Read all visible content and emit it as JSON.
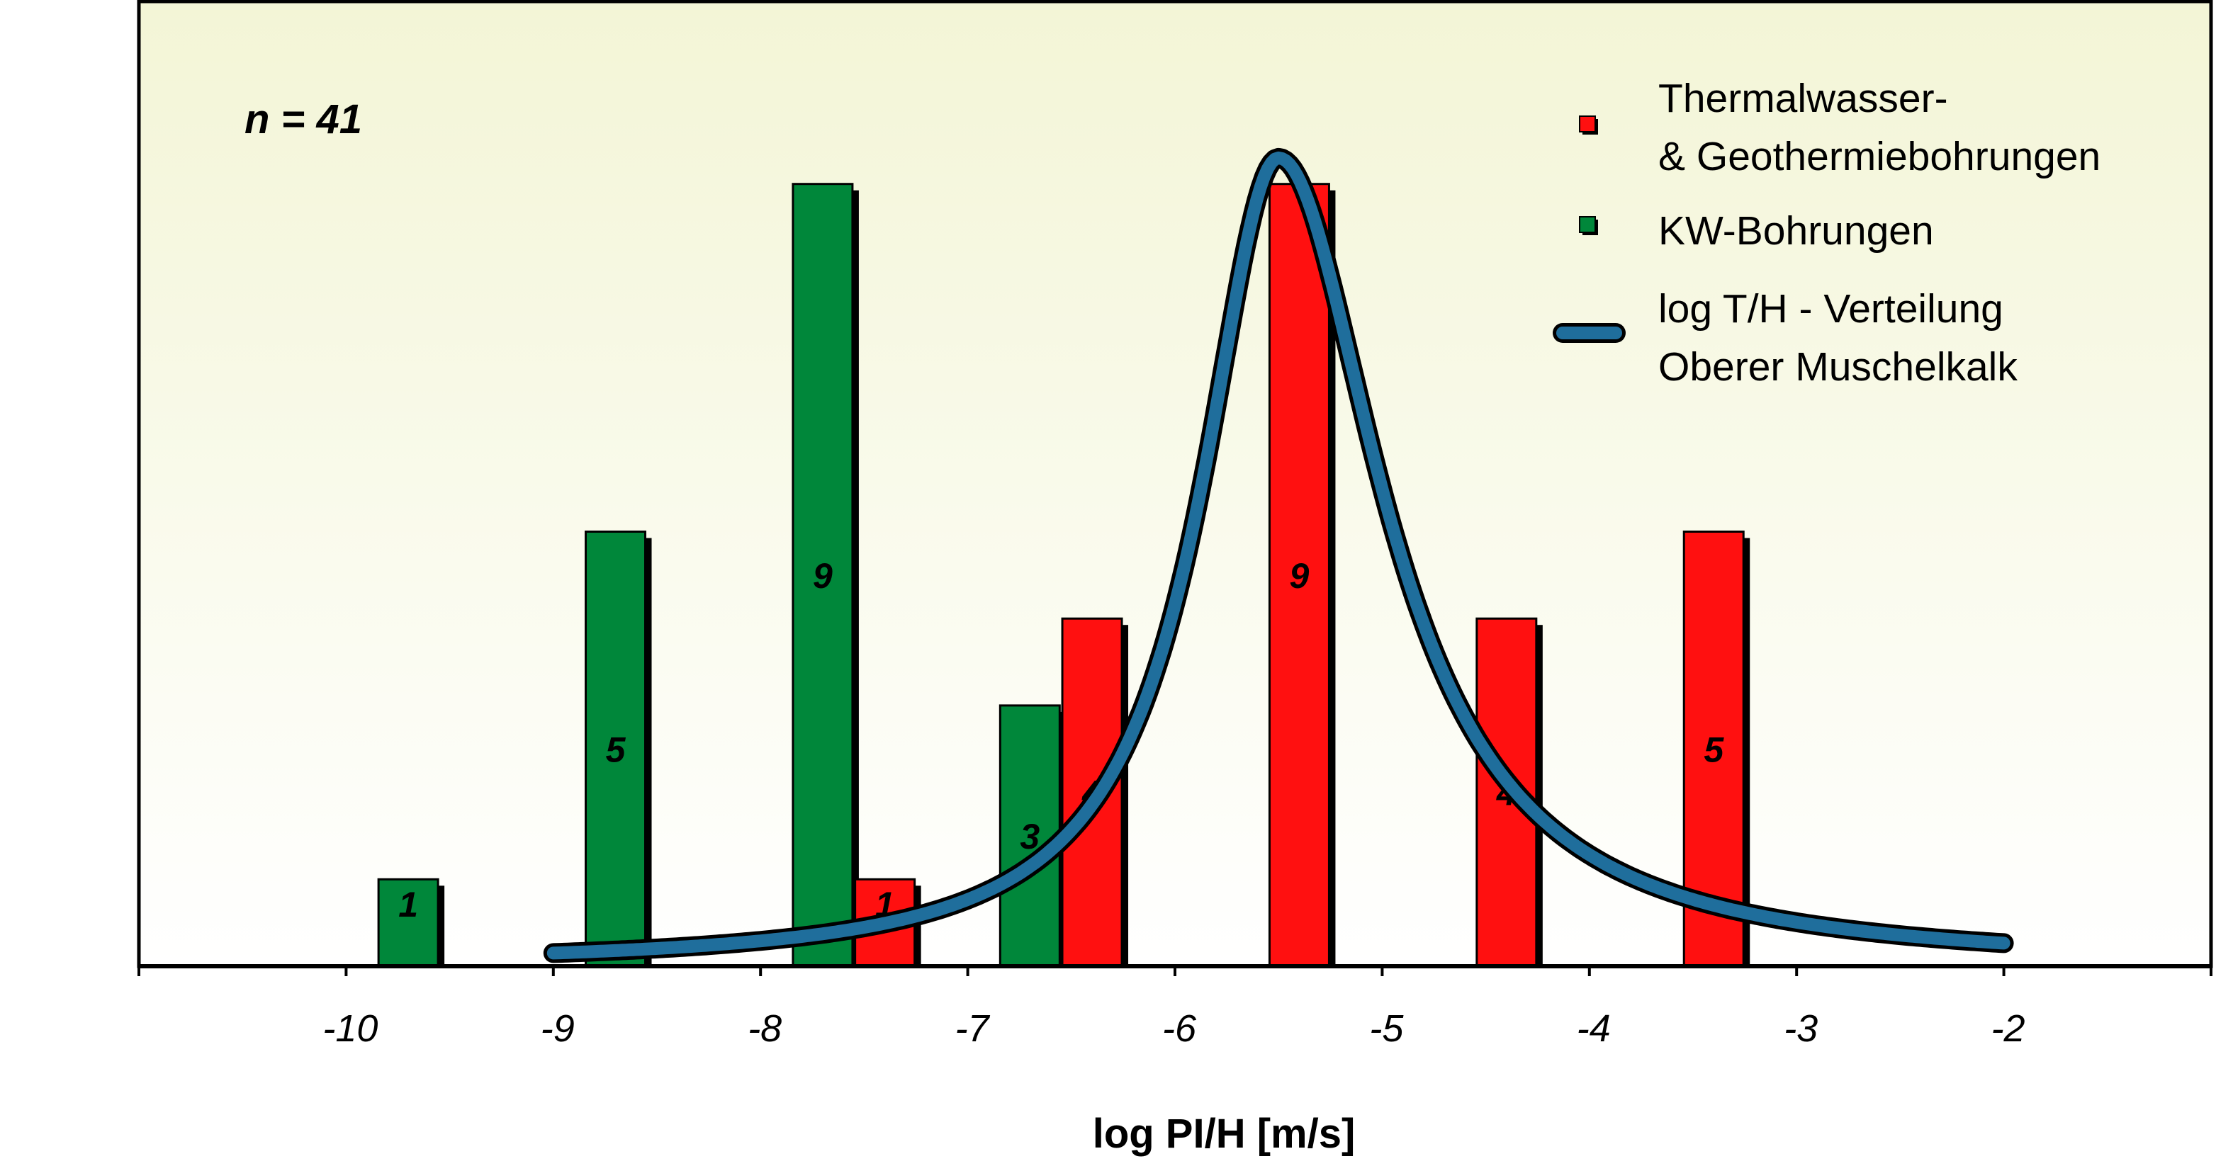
{
  "chart_data": {
    "type": "bar",
    "annotation": "n = 41",
    "xlabel": "log PI/H [m/s]",
    "ylabel": "",
    "xlim": [
      -11,
      -1
    ],
    "ylim": [
      0,
      10
    ],
    "x_ticks": [
      -10,
      -9,
      -8,
      -7,
      -6,
      -5,
      -4,
      -3,
      -2
    ],
    "x_tick_labels": [
      "-10",
      "-9",
      "-8",
      "-7",
      "-6",
      "-5",
      "-4",
      "-3",
      "-2"
    ],
    "grid": false,
    "legend_position": "top-right",
    "series": [
      {
        "name": "KW-Bohrungen",
        "color": "#00873a",
        "points": [
          {
            "x": -9.7,
            "value": 1
          },
          {
            "x": -8.7,
            "value": 5
          },
          {
            "x": -7.7,
            "value": 9
          },
          {
            "x": -6.7,
            "value": 3
          }
        ]
      },
      {
        "name": "Thermalwasser- & Geothermiebohrungen",
        "color": "#ff1010",
        "points": [
          {
            "x": -7.4,
            "value": 1
          },
          {
            "x": -6.4,
            "value": 4
          },
          {
            "x": -5.4,
            "value": 9
          },
          {
            "x": -4.4,
            "value": 4
          },
          {
            "x": -3.4,
            "value": 5
          }
        ]
      }
    ],
    "curve": {
      "name": "log T/H - Verteilung Oberer Muschelkalk",
      "color": "#1f6e9c",
      "x_range": [
        -9,
        -2
      ],
      "peak_x": -5.5,
      "peak_value": 9.3
    },
    "legend": [
      {
        "kind": "bar",
        "color": "#ff1010",
        "lines": [
          "Thermalwasser-",
          "& Geothermiebohrungen"
        ]
      },
      {
        "kind": "bar",
        "color": "#00873a",
        "lines": [
          "KW-Bohrungen"
        ]
      },
      {
        "kind": "curve",
        "color": "#1f6e9c",
        "lines": [
          "log T/H - Verteilung",
          "Oberer Muschelkalk"
        ]
      }
    ]
  }
}
